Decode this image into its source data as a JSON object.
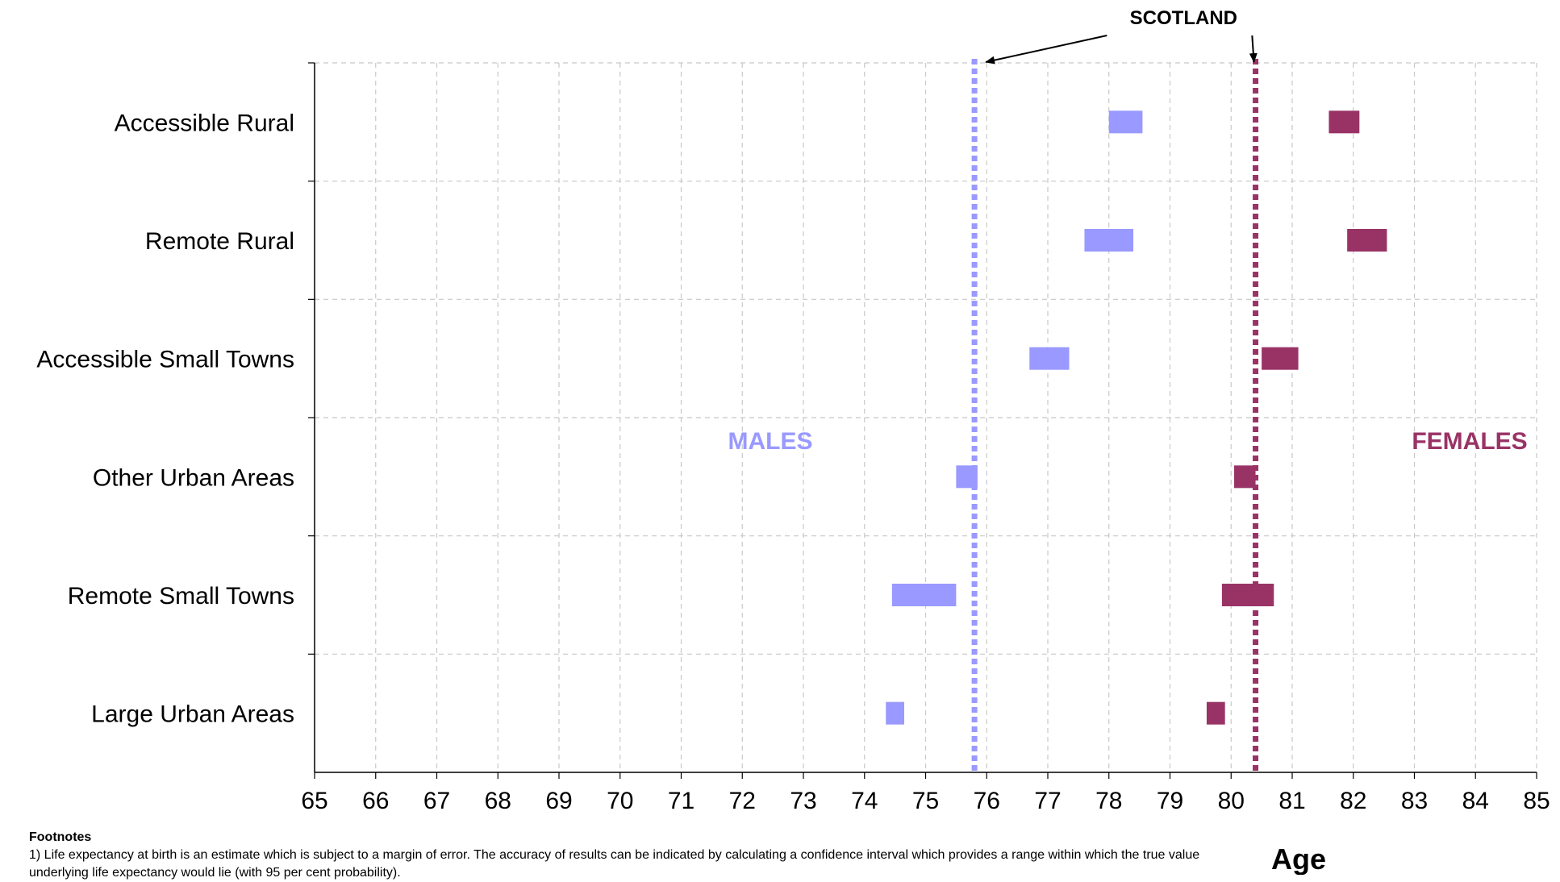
{
  "chart_data": {
    "type": "range-bar",
    "categories": [
      "Accessible Rural",
      "Remote Rural",
      "Accessible Small Towns",
      "Other Urban Areas",
      "Remote Small Towns",
      "Large Urban Areas"
    ],
    "series": [
      {
        "name": "MALES",
        "color": "#9999ff",
        "ranges": [
          [
            78.0,
            78.55
          ],
          [
            77.6,
            78.4
          ],
          [
            76.7,
            77.35
          ],
          [
            75.5,
            75.85
          ],
          [
            74.45,
            75.5
          ],
          [
            74.35,
            74.65
          ]
        ]
      },
      {
        "name": "FEMALES",
        "color": "#993366",
        "ranges": [
          [
            81.6,
            82.1
          ],
          [
            81.9,
            82.55
          ],
          [
            80.5,
            81.1
          ],
          [
            80.05,
            80.4
          ],
          [
            79.85,
            80.7
          ],
          [
            79.6,
            79.9
          ]
        ]
      }
    ],
    "reference_lines": [
      {
        "value": 75.8,
        "color": "#9999ff"
      },
      {
        "value": 80.4,
        "color": "#993366"
      }
    ],
    "reference_label": "SCOTLAND",
    "xlabel": "Age",
    "xlim": [
      65,
      85
    ],
    "xticks": [
      "65",
      "66",
      "67",
      "68",
      "69",
      "70",
      "71",
      "72",
      "73",
      "74",
      "75",
      "76",
      "77",
      "78",
      "79",
      "80",
      "81",
      "82",
      "83",
      "84",
      "85"
    ],
    "grid": true
  },
  "footnotes": {
    "title": "Footnotes",
    "text": "1) Life expectancy at birth is an estimate which is subject to a margin of error.  The accuracy of results can be indicated by calculating a confidence interval which provides a range within which the true value underlying life expectancy would lie (with 95 per cent probability)."
  }
}
